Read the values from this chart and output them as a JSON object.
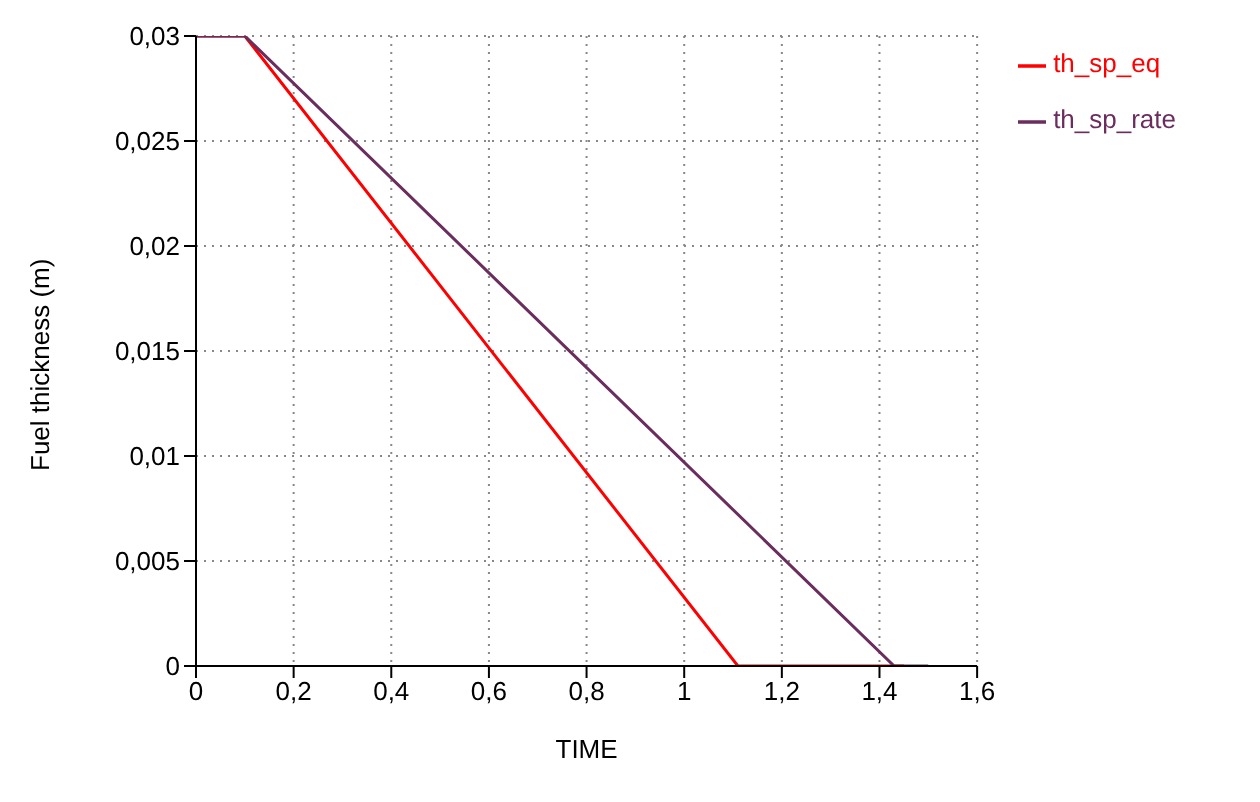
{
  "chart_data": {
    "type": "line",
    "xlabel": "TIME",
    "ylabel": "Fuel thickness (m)",
    "series": [
      {
        "name": "th_sp_eq",
        "color": "#ff0000",
        "x": [
          0,
          0.1,
          1.11,
          1.45
        ],
        "values": [
          0.03,
          0.03,
          0,
          0
        ]
      },
      {
        "name": "th_sp_rate",
        "color": "#6a2d5e",
        "x": [
          0,
          0.1,
          1.43,
          1.5
        ],
        "values": [
          0.03,
          0.03,
          0,
          0
        ]
      }
    ],
    "xlim": [
      0,
      1.6
    ],
    "xticks": [
      {
        "value": 0,
        "label": "0"
      },
      {
        "value": 0.2,
        "label": "0,2"
      },
      {
        "value": 0.4,
        "label": "0,4"
      },
      {
        "value": 0.6,
        "label": "0,6"
      },
      {
        "value": 0.8,
        "label": "0,8"
      },
      {
        "value": 1,
        "label": "1"
      },
      {
        "value": 1.2,
        "label": "1,2"
      },
      {
        "value": 1.4,
        "label": "1,4"
      },
      {
        "value": 1.6,
        "label": "1,6"
      }
    ],
    "ylim": [
      0,
      0.03
    ],
    "yticks": [
      {
        "value": 0,
        "label": "0"
      },
      {
        "value": 0.005,
        "label": "0,005"
      },
      {
        "value": 0.01,
        "label": "0,01"
      },
      {
        "value": 0.015,
        "label": "0,015"
      },
      {
        "value": 0.02,
        "label": "0,02"
      },
      {
        "value": 0.025,
        "label": "0,025"
      },
      {
        "value": 0.03,
        "label": "0,03"
      }
    ],
    "grid": true,
    "legend": "top right",
    "marker": "none",
    "line_style": "solid"
  }
}
